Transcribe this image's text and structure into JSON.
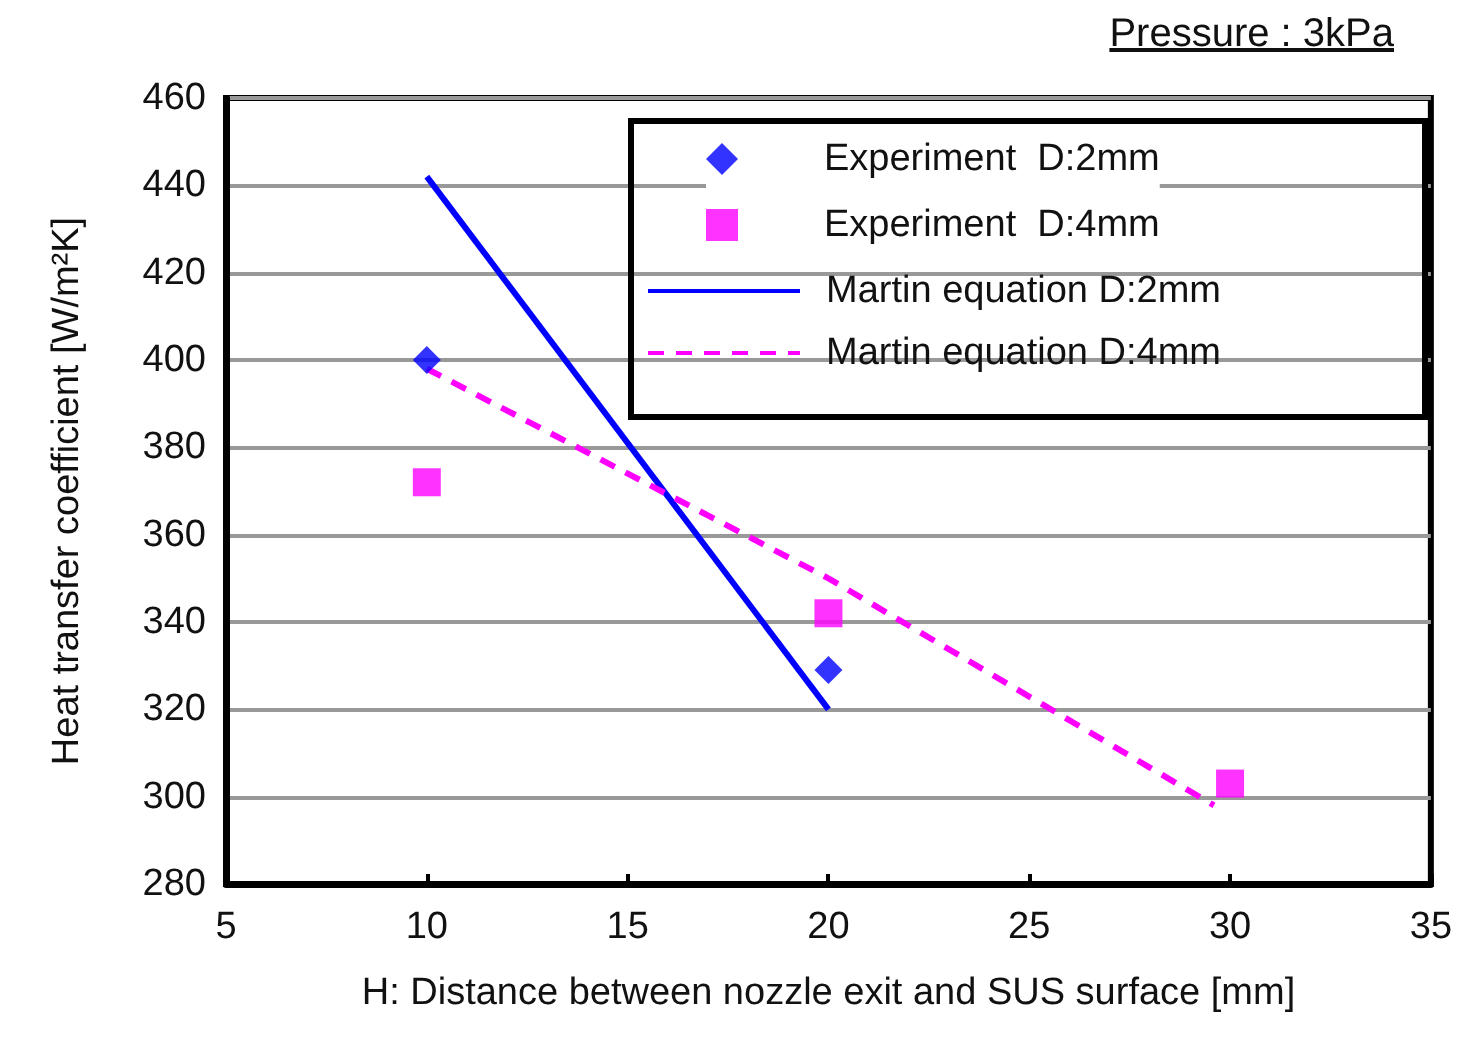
{
  "chart_data": {
    "type": "scatter",
    "xlabel": "H: Distance between nozzle exit and SUS surface [mm]",
    "ylabel": "Heat transfer coefficient [W/m²K]",
    "annotations": [
      "Pressure : 3kPa"
    ],
    "xlim": [
      5,
      35
    ],
    "xticks": [
      5,
      10,
      15,
      20,
      25,
      30,
      35
    ],
    "ylim": [
      280,
      460
    ],
    "yticks": [
      280,
      300,
      320,
      340,
      360,
      380,
      400,
      420,
      440,
      460
    ],
    "grid": "y",
    "legend": "top right",
    "series": [
      {
        "name": "Experiment  D:2mm",
        "color": "#0000ff",
        "marker": "diamond",
        "x": [
          10,
          20
        ],
        "values": [
          400,
          329
        ]
      },
      {
        "name": "Experiment  D:4mm",
        "color": "#ff00ff",
        "marker": "square",
        "x": [
          10,
          20,
          30
        ],
        "values": [
          372,
          342,
          303
        ]
      },
      {
        "name": "Martin equation D:2mm",
        "type": "line",
        "color": "#0000ff",
        "line_style": "solid",
        "x": [
          10,
          20
        ],
        "values": [
          442,
          320
        ]
      },
      {
        "name": "Martin equation D:4mm",
        "type": "line",
        "color": "#ff00ff",
        "line_style": "dashed",
        "x": [
          10,
          20,
          29.6
        ],
        "values": [
          398,
          350,
          298
        ]
      }
    ]
  }
}
